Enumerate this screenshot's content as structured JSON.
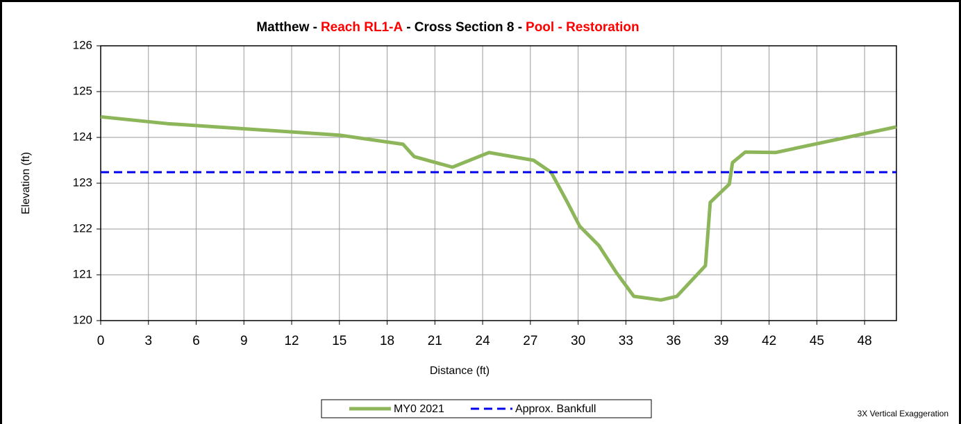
{
  "chart_data": {
    "type": "line",
    "title": [
      {
        "text": "Matthew -",
        "color": "#000000"
      },
      {
        "text": "Reach RL1-A",
        "color": "#ff0000"
      },
      {
        "text": "- Cross Section 8 -",
        "color": "#000000"
      },
      {
        "text": "Pool - Restoration",
        "color": "#ff0000"
      }
    ],
    "x_label": "Distance (ft)",
    "y_label": "Elevation (ft)",
    "annotation": "3X Vertical Exaggeration",
    "xlim": [
      0,
      50
    ],
    "ylim": [
      120,
      126
    ],
    "xticks": [
      0,
      3,
      6,
      9,
      12,
      15,
      18,
      21,
      24,
      27,
      30,
      33,
      36,
      39,
      42,
      45,
      48
    ],
    "yticks": [
      120,
      121,
      122,
      123,
      124,
      125,
      126
    ],
    "grid": true,
    "legend": "bottom",
    "series": [
      {
        "name": "MY0 2021",
        "color": "#8db55a",
        "dash": false,
        "x": [
          0,
          4.2,
          15,
          19,
          19.7,
          22.1,
          24.4,
          27.2,
          28.3,
          29.3,
          30.1,
          31.3,
          32.4,
          33.5,
          35.2,
          36.2,
          38,
          38.3,
          39.5,
          39.7,
          40.5,
          42.4,
          50
        ],
        "values": [
          124.45,
          124.3,
          124.05,
          123.85,
          123.58,
          123.35,
          123.67,
          123.5,
          123.24,
          122.6,
          122.06,
          121.64,
          121.05,
          120.53,
          120.45,
          120.53,
          121.2,
          122.58,
          122.98,
          123.45,
          123.68,
          123.67,
          124.23
        ]
      },
      {
        "name": "Approx. Bankfull",
        "color": "#0000ee",
        "dash": true,
        "x": [
          0,
          50
        ],
        "values": [
          123.24,
          123.24
        ]
      }
    ]
  }
}
